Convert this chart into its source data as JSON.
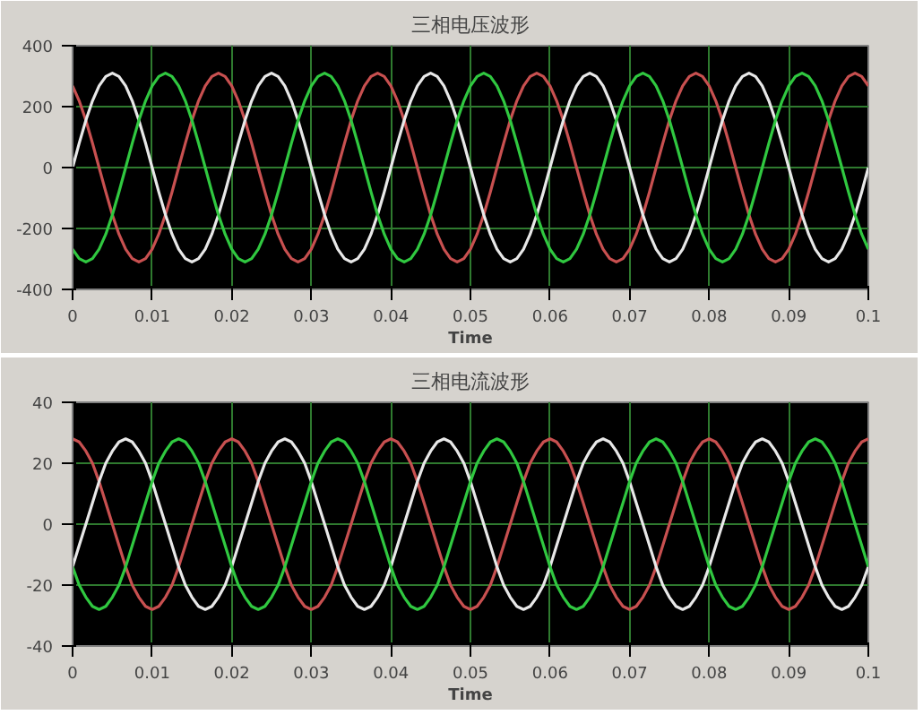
{
  "chart_data": [
    {
      "type": "line",
      "title": "三相电压波形",
      "xlabel": "Time",
      "xlim": [
        0,
        0.1
      ],
      "ylim": [
        -400,
        400
      ],
      "xticks": [
        0,
        0.01,
        0.02,
        0.03,
        0.04,
        0.05,
        0.06,
        0.07,
        0.08,
        0.09,
        0.1
      ],
      "yticks": [
        -400,
        -200,
        0,
        200,
        400
      ],
      "grid": true,
      "x": [
        0,
        0.00083,
        0.00167,
        0.0025,
        0.00333,
        0.00417,
        0.005,
        0.00583,
        0.00667,
        0.0075,
        0.00833,
        0.00917,
        0.01,
        0.01083,
        0.01167,
        0.0125,
        0.01333,
        0.01417,
        0.015,
        0.01583,
        0.01667,
        0.0175,
        0.01833,
        0.01917,
        0.02,
        0.02083,
        0.02167,
        0.0225,
        0.02333,
        0.02417,
        0.025,
        0.02583,
        0.02667,
        0.0275,
        0.02833,
        0.02917,
        0.03,
        0.03083,
        0.03167,
        0.0325,
        0.03333,
        0.03417,
        0.035,
        0.03583,
        0.03667,
        0.0375,
        0.03833,
        0.03917,
        0.04,
        0.04083,
        0.04167,
        0.0425,
        0.04333,
        0.04417,
        0.045,
        0.04583,
        0.04667,
        0.0475,
        0.04833,
        0.04917,
        0.05,
        0.05083,
        0.05167,
        0.0525,
        0.05333,
        0.05417,
        0.055,
        0.05583,
        0.05667,
        0.0575,
        0.05833,
        0.05917,
        0.06,
        0.06083,
        0.06167,
        0.0625,
        0.06333,
        0.06417,
        0.065,
        0.06583,
        0.06667,
        0.0675,
        0.06833,
        0.06917,
        0.07,
        0.07083,
        0.07167,
        0.0725,
        0.07333,
        0.07417,
        0.075,
        0.07583,
        0.07667,
        0.0775,
        0.07833,
        0.07917,
        0.08,
        0.08083,
        0.08167,
        0.0825,
        0.08333,
        0.08417,
        0.085,
        0.08583,
        0.08667,
        0.0875,
        0.08833,
        0.08917,
        0.09,
        0.09083,
        0.09167,
        0.0925,
        0.09333,
        0.09417,
        0.095,
        0.09583,
        0.09667,
        0.0975,
        0.09833,
        0.09917,
        0.1
      ],
      "series": [
        {
          "color": "#c85050",
          "values": [
            268,
            219,
            155,
            80,
            0,
            -80,
            -155,
            -219,
            -268,
            -299,
            -310,
            -299,
            -268,
            -219,
            -155,
            -80,
            0,
            80,
            155,
            219,
            268,
            299,
            310,
            299,
            268,
            219,
            155,
            80,
            0,
            -80,
            -155,
            -219,
            -268,
            -299,
            -310,
            -299,
            -268,
            -219,
            -155,
            -80,
            0,
            80,
            155,
            219,
            268,
            299,
            310,
            299,
            268,
            219,
            155,
            80,
            0,
            -80,
            -155,
            -219,
            -268,
            -299,
            -310,
            -299,
            -268,
            -219,
            -155,
            -80,
            0,
            80,
            155,
            219,
            268,
            299,
            310,
            299,
            268,
            219,
            155,
            80,
            0,
            -80,
            -155,
            -219,
            -268,
            -299,
            -310,
            -299,
            -268,
            -219,
            -155,
            -80,
            0,
            80,
            155,
            219,
            268,
            299,
            310,
            299,
            268,
            219,
            155,
            80,
            0,
            -80,
            -155,
            -219,
            -268,
            -299,
            -310,
            -299,
            -268,
            -219,
            -155,
            -80,
            0,
            80,
            155,
            219,
            268,
            299,
            310,
            299,
            268
          ]
        },
        {
          "color": "#e8e8e8",
          "values": [
            0,
            80,
            155,
            219,
            268,
            299,
            310,
            299,
            268,
            219,
            155,
            80,
            0,
            -80,
            -155,
            -219,
            -268,
            -299,
            -310,
            -299,
            -268,
            -219,
            -155,
            -80,
            0,
            80,
            155,
            219,
            268,
            299,
            310,
            299,
            268,
            219,
            155,
            80,
            0,
            -80,
            -155,
            -219,
            -268,
            -299,
            -310,
            -299,
            -268,
            -219,
            -155,
            -80,
            0,
            80,
            155,
            219,
            268,
            299,
            310,
            299,
            268,
            219,
            155,
            80,
            0,
            -80,
            -155,
            -219,
            -268,
            -299,
            -310,
            -299,
            -268,
            -219,
            -155,
            -80,
            0,
            80,
            155,
            219,
            268,
            299,
            310,
            299,
            268,
            219,
            155,
            80,
            0,
            -80,
            -155,
            -219,
            -268,
            -299,
            -310,
            -299,
            -268,
            -219,
            -155,
            -80,
            0,
            80,
            155,
            219,
            268,
            299,
            310,
            299,
            268,
            219,
            155,
            80,
            0,
            -80,
            -155,
            -219,
            -268,
            -299,
            -310,
            -299,
            -268,
            -219,
            -155,
            -80,
            0
          ]
        },
        {
          "color": "#30c840",
          "values": [
            -268,
            -299,
            -310,
            -299,
            -268,
            -219,
            -155,
            -80,
            0,
            80,
            155,
            219,
            268,
            299,
            310,
            299,
            268,
            219,
            155,
            80,
            0,
            -80,
            -155,
            -219,
            -268,
            -299,
            -310,
            -299,
            -268,
            -219,
            -155,
            -80,
            0,
            80,
            155,
            219,
            268,
            299,
            310,
            299,
            268,
            219,
            155,
            80,
            0,
            -80,
            -155,
            -219,
            -268,
            -299,
            -310,
            -299,
            -268,
            -219,
            -155,
            -80,
            0,
            80,
            155,
            219,
            268,
            299,
            310,
            299,
            268,
            219,
            155,
            80,
            0,
            -80,
            -155,
            -219,
            -268,
            -299,
            -310,
            -299,
            -268,
            -219,
            -155,
            -80,
            0,
            80,
            155,
            219,
            268,
            299,
            310,
            299,
            268,
            219,
            155,
            80,
            0,
            -80,
            -155,
            -219,
            -268,
            -299,
            -310,
            -299,
            -268,
            -219,
            -155,
            -80,
            0,
            80,
            155,
            219,
            268,
            299,
            310,
            299,
            268,
            219,
            155,
            80,
            0,
            -80,
            -155,
            -219,
            -268
          ]
        }
      ]
    },
    {
      "type": "line",
      "title": "三相电流波形",
      "xlabel": "Time",
      "xlim": [
        0,
        0.1
      ],
      "ylim": [
        -40,
        40
      ],
      "xticks": [
        0,
        0.01,
        0.02,
        0.03,
        0.04,
        0.05,
        0.06,
        0.07,
        0.08,
        0.09,
        0.1
      ],
      "yticks": [
        -40,
        -20,
        0,
        20,
        40
      ],
      "grid": true,
      "x": [
        0,
        0.00083,
        0.00167,
        0.0025,
        0.00333,
        0.00417,
        0.005,
        0.00583,
        0.00667,
        0.0075,
        0.00833,
        0.00917,
        0.01,
        0.01083,
        0.01167,
        0.0125,
        0.01333,
        0.01417,
        0.015,
        0.01583,
        0.01667,
        0.0175,
        0.01833,
        0.01917,
        0.02,
        0.02083,
        0.02167,
        0.0225,
        0.02333,
        0.02417,
        0.025,
        0.02583,
        0.02667,
        0.0275,
        0.02833,
        0.02917,
        0.03,
        0.03083,
        0.03167,
        0.0325,
        0.03333,
        0.03417,
        0.035,
        0.03583,
        0.03667,
        0.0375,
        0.03833,
        0.03917,
        0.04,
        0.04083,
        0.04167,
        0.0425,
        0.04333,
        0.04417,
        0.045,
        0.04583,
        0.04667,
        0.0475,
        0.04833,
        0.04917,
        0.05,
        0.05083,
        0.05167,
        0.0525,
        0.05333,
        0.05417,
        0.055,
        0.05583,
        0.05667,
        0.0575,
        0.05833,
        0.05917,
        0.06,
        0.06083,
        0.06167,
        0.0625,
        0.06333,
        0.06417,
        0.065,
        0.06583,
        0.06667,
        0.0675,
        0.06833,
        0.06917,
        0.07,
        0.07083,
        0.07167,
        0.0725,
        0.07333,
        0.07417,
        0.075,
        0.07583,
        0.07667,
        0.0775,
        0.07833,
        0.07917,
        0.08,
        0.08083,
        0.08167,
        0.0825,
        0.08333,
        0.08417,
        0.085,
        0.08583,
        0.08667,
        0.0875,
        0.08833,
        0.08917,
        0.09,
        0.09083,
        0.09167,
        0.0925,
        0.09333,
        0.09417,
        0.095,
        0.09583,
        0.09667,
        0.0975,
        0.09833,
        0.09917,
        0.1
      ],
      "series": [
        {
          "color": "#c85050",
          "values": [
            28,
            27,
            24,
            20,
            14,
            7,
            0,
            -7,
            -14,
            -20,
            -24,
            -27,
            -28,
            -27,
            -24,
            -20,
            -14,
            -7,
            0,
            7,
            14,
            20,
            24,
            27,
            28,
            27,
            24,
            20,
            14,
            7,
            0,
            -7,
            -14,
            -20,
            -24,
            -27,
            -28,
            -27,
            -24,
            -20,
            -14,
            -7,
            0,
            7,
            14,
            20,
            24,
            27,
            28,
            27,
            24,
            20,
            14,
            7,
            0,
            -7,
            -14,
            -20,
            -24,
            -27,
            -28,
            -27,
            -24,
            -20,
            -14,
            -7,
            0,
            7,
            14,
            20,
            24,
            27,
            28,
            27,
            24,
            20,
            14,
            7,
            0,
            -7,
            -14,
            -20,
            -24,
            -27,
            -28,
            -27,
            -24,
            -20,
            -14,
            -7,
            0,
            7,
            14,
            20,
            24,
            27,
            28,
            27,
            24,
            20,
            14,
            7,
            0,
            -7,
            -14,
            -20,
            -24,
            -27,
            -28,
            -27,
            -24,
            -20,
            -14,
            -7,
            0,
            7,
            14,
            20,
            24,
            27,
            28
          ]
        },
        {
          "color": "#e8e8e8",
          "values": [
            -14,
            -7,
            0,
            7,
            14,
            20,
            24,
            27,
            28,
            27,
            24,
            20,
            14,
            7,
            0,
            -7,
            -14,
            -20,
            -24,
            -27,
            -28,
            -27,
            -24,
            -20,
            -14,
            -7,
            0,
            7,
            14,
            20,
            24,
            27,
            28,
            27,
            24,
            20,
            14,
            7,
            0,
            -7,
            -14,
            -20,
            -24,
            -27,
            -28,
            -27,
            -24,
            -20,
            -14,
            -7,
            0,
            7,
            14,
            20,
            24,
            27,
            28,
            27,
            24,
            20,
            14,
            7,
            0,
            -7,
            -14,
            -20,
            -24,
            -27,
            -28,
            -27,
            -24,
            -20,
            -14,
            -7,
            0,
            7,
            14,
            20,
            24,
            27,
            28,
            27,
            24,
            20,
            14,
            7,
            0,
            -7,
            -14,
            -20,
            -24,
            -27,
            -28,
            -27,
            -24,
            -20,
            -14,
            -7,
            0,
            7,
            14,
            20,
            24,
            27,
            28,
            27,
            24,
            20,
            14,
            7,
            0,
            -7,
            -14,
            -20,
            -24,
            -27,
            -28,
            -27,
            -24,
            -20,
            -14
          ]
        },
        {
          "color": "#30c840",
          "values": [
            -14,
            -20,
            -24,
            -27,
            -28,
            -27,
            -24,
            -20,
            -14,
            -7,
            0,
            7,
            14,
            20,
            24,
            27,
            28,
            27,
            24,
            20,
            14,
            7,
            0,
            -7,
            -14,
            -20,
            -24,
            -27,
            -28,
            -27,
            -24,
            -20,
            -14,
            -7,
            0,
            7,
            14,
            20,
            24,
            27,
            28,
            27,
            24,
            20,
            14,
            7,
            0,
            -7,
            -14,
            -20,
            -24,
            -27,
            -28,
            -27,
            -24,
            -20,
            -14,
            -7,
            0,
            7,
            14,
            20,
            24,
            27,
            28,
            27,
            24,
            20,
            14,
            7,
            0,
            -7,
            -14,
            -20,
            -24,
            -27,
            -28,
            -27,
            -24,
            -20,
            -14,
            -7,
            0,
            7,
            14,
            20,
            24,
            27,
            28,
            27,
            24,
            20,
            14,
            7,
            0,
            -7,
            -14,
            -20,
            -24,
            -27,
            -28,
            -27,
            -24,
            -20,
            -14,
            -7,
            0,
            7,
            14,
            20,
            24,
            27,
            28,
            27,
            24,
            20,
            14,
            7,
            0,
            -7,
            -14
          ]
        }
      ]
    }
  ]
}
